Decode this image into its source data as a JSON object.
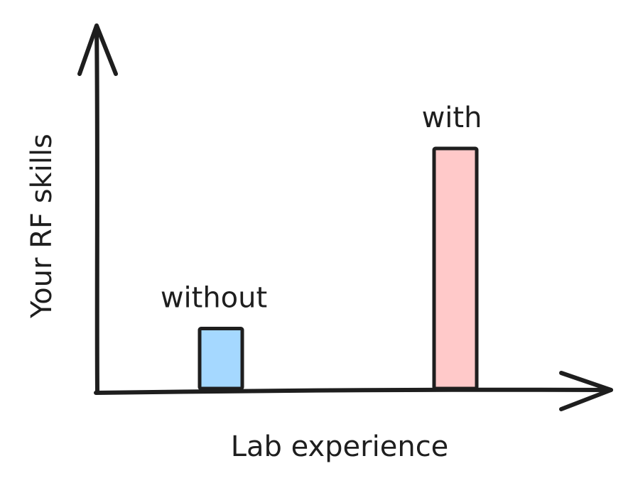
{
  "chart_data": {
    "type": "bar",
    "categories": [
      "without",
      "with"
    ],
    "values": [
      1,
      4
    ],
    "xlabel": "Lab experience",
    "ylabel": "Your RF skills",
    "colors": [
      "#a5d8ff",
      "#ffc9c9"
    ],
    "grid": false,
    "legend": "none"
  }
}
